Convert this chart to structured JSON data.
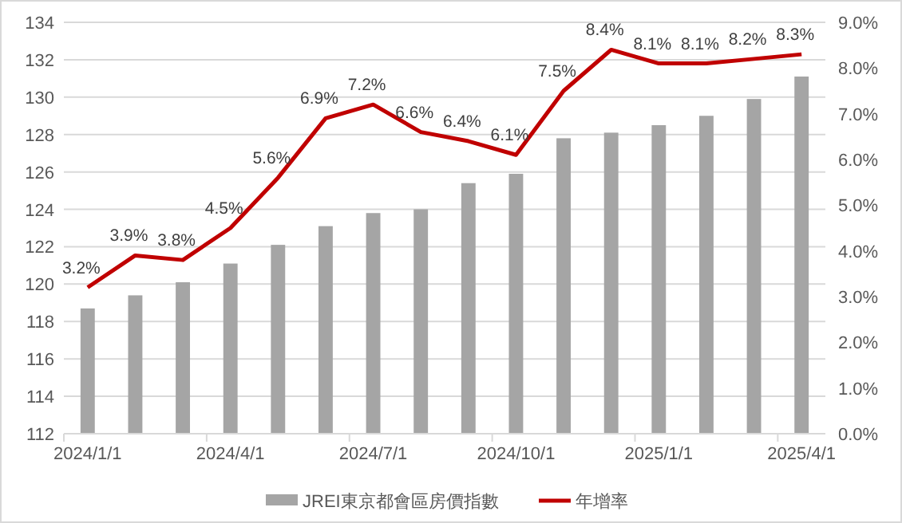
{
  "chart_data": {
    "type": "bar",
    "categories": [
      "2024/1/1",
      null,
      null,
      "2024/4/1",
      null,
      null,
      "2024/7/1",
      null,
      null,
      "2024/10/1",
      null,
      null,
      "2025/1/1",
      null,
      null,
      "2025/4/1"
    ],
    "series": [
      {
        "name": "JREI東京都會區房價指數",
        "color": "#a5a5a5",
        "values": [
          118.7,
          119.4,
          120.1,
          121.1,
          122.1,
          123.1,
          123.8,
          124.0,
          125.4,
          125.9,
          127.8,
          128.1,
          128.5,
          129.0,
          129.9,
          131.1
        ]
      },
      {
        "name": "年增率",
        "type": "line",
        "axis": "y2",
        "color": "#c00000",
        "values": [
          3.2,
          3.9,
          3.8,
          4.5,
          5.6,
          6.9,
          7.2,
          6.6,
          6.4,
          6.1,
          7.5,
          8.4,
          8.1,
          8.1,
          8.2,
          8.3
        ],
        "value_labels": [
          "3.2%",
          "3.9%",
          "3.8%",
          "4.5%",
          "5.6%",
          "6.9%",
          "7.2%",
          "6.6%",
          "6.4%",
          "6.1%",
          "7.5%",
          "8.4%",
          "8.1%",
          "8.1%",
          "8.2%",
          "8.3%"
        ]
      }
    ],
    "ylim": [
      112,
      134
    ],
    "yticks": [
      112,
      114,
      116,
      118,
      120,
      122,
      124,
      126,
      128,
      130,
      132,
      134
    ],
    "y2lim": [
      0,
      9
    ],
    "y2ticks": [
      {
        "value": 0,
        "label": "0.0%"
      },
      {
        "value": 1,
        "label": "1.0%"
      },
      {
        "value": 2,
        "label": "2.0%"
      },
      {
        "value": 3,
        "label": "3.0%"
      },
      {
        "value": 4,
        "label": "4.0%"
      },
      {
        "value": 5,
        "label": "5.0%"
      },
      {
        "value": 6,
        "label": "6.0%"
      },
      {
        "value": 7,
        "label": "7.0%"
      },
      {
        "value": 8,
        "label": "8.0%"
      },
      {
        "value": 9,
        "label": "9.0%"
      }
    ],
    "grid": "y",
    "legend": "bottom",
    "marker": "none",
    "line_style": "solid"
  }
}
